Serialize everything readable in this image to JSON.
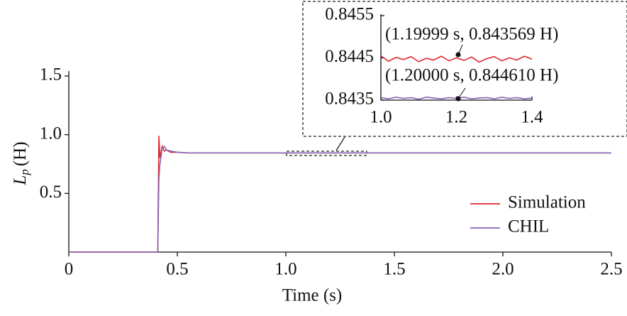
{
  "chart_data": [
    {
      "type": "line",
      "xlabel": "Time (s)",
      "ylabel": {
        "symbol": "L",
        "sub": "p",
        "unit": "(H)"
      },
      "x": [
        0,
        0.4,
        0.41,
        0.415,
        0.42,
        0.43,
        0.44,
        0.45,
        0.47,
        0.5,
        0.55,
        0.6,
        1.0,
        1.5,
        2.0,
        2.5
      ],
      "series": [
        {
          "name": "Simulation",
          "color": "#e0282e",
          "values": [
            0,
            0,
            0,
            0.99,
            0.8,
            0.9,
            0.86,
            0.87,
            0.85,
            0.85,
            0.845,
            0.845,
            0.845,
            0.845,
            0.845,
            0.845
          ]
        },
        {
          "name": "CHIL",
          "color": "#8462b4",
          "values": [
            0,
            0,
            0,
            0.62,
            0.75,
            0.88,
            0.9,
            0.87,
            0.86,
            0.85,
            0.845,
            0.845,
            0.845,
            0.845,
            0.845,
            0.845
          ]
        }
      ],
      "xlim": [
        0,
        2.5
      ],
      "xticks": [
        0,
        0.5,
        {
          "value": 1,
          "label": "1.0"
        },
        1.5,
        {
          "value": 2,
          "label": "2.0"
        },
        2.5
      ],
      "ylim": [
        0,
        1.5
      ],
      "yticks": [
        0.5,
        {
          "value": 1,
          "label": "1.0"
        },
        1.5
      ],
      "legend": "lower right"
    },
    {
      "type": "line",
      "x": [
        1.0,
        1.02,
        1.04,
        1.06,
        1.08,
        1.1,
        1.12,
        1.14,
        1.16,
        1.18,
        1.2,
        1.22,
        1.24,
        1.26,
        1.28,
        1.3,
        1.32,
        1.34,
        1.36,
        1.38,
        1.4
      ],
      "series": [
        {
          "name": "Simulation",
          "color": "#e0282e",
          "values": [
            0.84455,
            0.84442,
            0.84451,
            0.84446,
            0.84453,
            0.84441,
            0.84449,
            0.84445,
            0.84454,
            0.84443,
            0.8445,
            0.84444,
            0.84452,
            0.8444,
            0.84448,
            0.84453,
            0.84443,
            0.8445,
            0.84445,
            0.84454,
            0.84447
          ]
        },
        {
          "name": "CHIL",
          "color": "#8462b4",
          "values": [
            0.84356,
            0.84353,
            0.84357,
            0.84354,
            0.84356,
            0.84352,
            0.84357,
            0.84355,
            0.84353,
            0.84356,
            0.84354,
            0.84357,
            0.84353,
            0.84355,
            0.84356,
            0.84353,
            0.84357,
            0.84354,
            0.84356,
            0.84353,
            0.84355
          ]
        }
      ],
      "xlim": [
        1.0,
        1.4
      ],
      "xticks": [
        {
          "value": 1,
          "label": "1.0"
        },
        1.2,
        1.4
      ],
      "ylim": [
        0.8435,
        0.8455
      ],
      "yticks": [
        0.8435,
        0.8445,
        0.8455
      ],
      "annotations": [
        "(1.19999 s, 0.843569 H)",
        "(1.20000 s, 0.844610 H)"
      ]
    }
  ]
}
